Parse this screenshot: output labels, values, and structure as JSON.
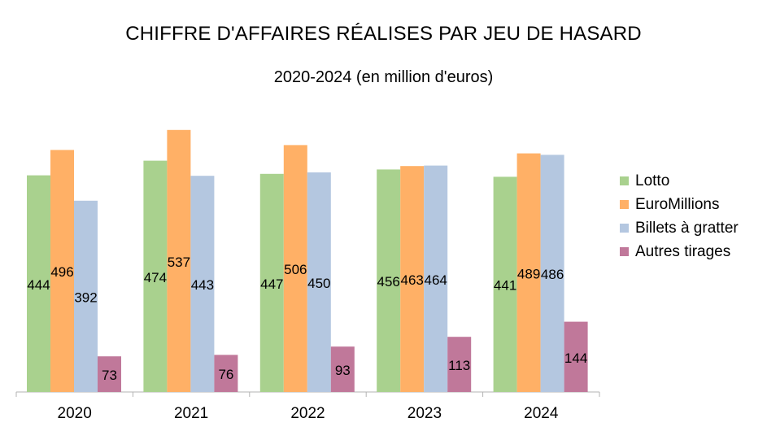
{
  "chart_data": {
    "type": "bar",
    "title": "CHIFFRE D'AFFAIRES RÉALISES PAR JEU DE HASARD",
    "subtitle": "2020-2024 (en million d'euros)",
    "categories": [
      "2020",
      "2021",
      "2022",
      "2023",
      "2024"
    ],
    "series": [
      {
        "name": "Lotto",
        "color": "#a9d18e",
        "values": [
          444,
          474,
          447,
          456,
          441
        ]
      },
      {
        "name": "EuroMillions",
        "color": "#ffb066",
        "values": [
          496,
          537,
          506,
          463,
          489
        ]
      },
      {
        "name": "Billets à gratter",
        "color": "#b4c7e0",
        "values": [
          392,
          443,
          450,
          464,
          486
        ]
      },
      {
        "name": "Autres tirages",
        "color": "#c0789a",
        "values": [
          73,
          76,
          93,
          113,
          144
        ]
      }
    ],
    "ylim": [
      0,
      540
    ],
    "grid": false,
    "legend_position": "right"
  }
}
